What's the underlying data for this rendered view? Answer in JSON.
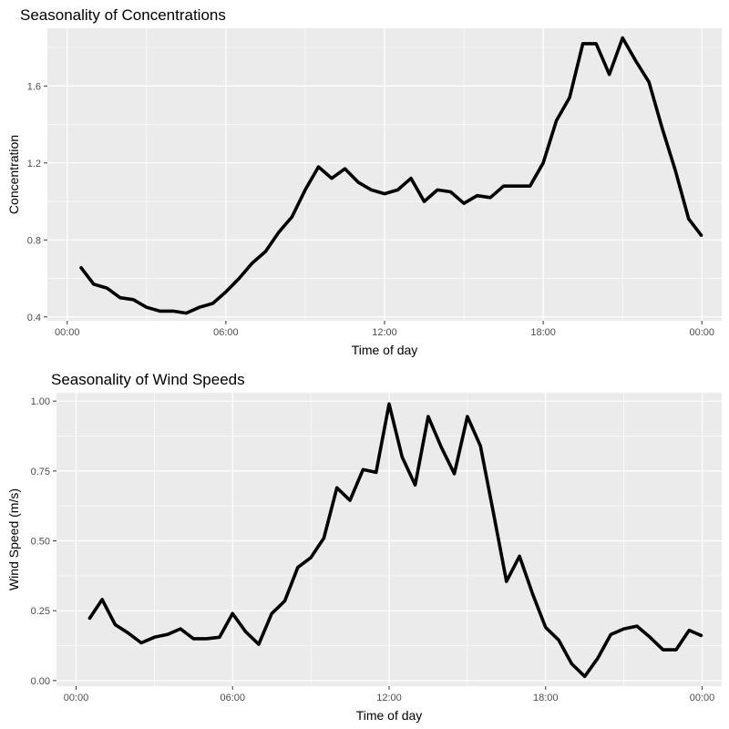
{
  "chart_data": [
    {
      "type": "line",
      "title": "Seasonality of Concentrations",
      "xlabel": "Time of day",
      "ylabel": "Concentration",
      "xlim": [
        -0.75,
        24.75
      ],
      "ylim": [
        0.38,
        1.9
      ],
      "x_ticks": [
        0,
        6,
        12,
        18,
        24
      ],
      "x_tick_labels": [
        "00:00",
        "06:00",
        "12:00",
        "18:00",
        "00:00"
      ],
      "y_ticks": [
        0.4,
        0.8,
        1.2,
        1.6
      ],
      "y_tick_labels": [
        "0.4",
        "0.8",
        "1.2",
        "1.6"
      ],
      "grid": true,
      "series": [
        {
          "x": [
            0.5,
            1,
            1.5,
            2,
            2.5,
            3,
            3.5,
            4,
            4.5,
            5,
            5.5,
            6,
            6.5,
            7,
            7.5,
            8,
            8.5,
            9,
            9.5,
            10,
            10.5,
            11,
            11.5,
            12,
            12.5,
            13,
            13.5,
            14,
            14.5,
            15,
            15.5,
            16,
            16.5,
            17,
            17.5,
            18,
            18.5,
            19,
            19.5,
            20,
            20.5,
            21,
            21.5,
            22,
            22.5,
            23,
            23.5,
            24
          ],
          "y": [
            0.66,
            0.57,
            0.55,
            0.5,
            0.49,
            0.45,
            0.43,
            0.43,
            0.42,
            0.45,
            0.47,
            0.53,
            0.6,
            0.68,
            0.74,
            0.84,
            0.92,
            1.06,
            1.18,
            1.12,
            1.17,
            1.1,
            1.06,
            1.04,
            1.06,
            1.12,
            1.0,
            1.06,
            1.05,
            0.99,
            1.03,
            1.02,
            1.08,
            1.08,
            1.08,
            1.2,
            1.42,
            1.54,
            1.82,
            1.82,
            1.66,
            1.85,
            1.73,
            1.62,
            1.38,
            1.16,
            0.91,
            0.82
          ],
          "color": "#000000"
        }
      ]
    },
    {
      "type": "line",
      "title": "Seasonality of Wind Speeds",
      "xlabel": "Time of day",
      "ylabel": "Wind Speed (m/s)",
      "xlim": [
        -0.75,
        24.75
      ],
      "ylim": [
        -0.02,
        1.03
      ],
      "x_ticks": [
        0,
        6,
        12,
        18,
        24
      ],
      "x_tick_labels": [
        "00:00",
        "06:00",
        "12:00",
        "18:00",
        "00:00"
      ],
      "y_ticks": [
        0,
        0.25,
        0.5,
        0.75,
        1.0
      ],
      "y_tick_labels": [
        "0.00",
        "0.25",
        "0.50",
        "0.75",
        "1.00"
      ],
      "grid": true,
      "series": [
        {
          "x": [
            0.5,
            1,
            1.5,
            2,
            2.5,
            3,
            3.5,
            4,
            4.5,
            5,
            5.5,
            6,
            6.5,
            7,
            7.5,
            8,
            8.5,
            9,
            9.5,
            10,
            10.5,
            11,
            11.5,
            12,
            12.5,
            13,
            13.5,
            14,
            14.5,
            15,
            15.5,
            16,
            16.5,
            17,
            17.5,
            18,
            18.5,
            19,
            19.5,
            20,
            20.5,
            21,
            21.5,
            22,
            22.5,
            23,
            23.5,
            24
          ],
          "y": [
            0.22,
            0.29,
            0.2,
            0.17,
            0.135,
            0.155,
            0.165,
            0.185,
            0.15,
            0.15,
            0.155,
            0.24,
            0.175,
            0.13,
            0.24,
            0.285,
            0.405,
            0.44,
            0.51,
            0.69,
            0.645,
            0.755,
            0.745,
            0.99,
            0.8,
            0.7,
            0.945,
            0.835,
            0.74,
            0.945,
            0.84,
            0.6,
            0.355,
            0.445,
            0.31,
            0.19,
            0.145,
            0.06,
            0.015,
            0.08,
            0.165,
            0.185,
            0.195,
            0.155,
            0.11,
            0.11,
            0.18,
            0.16
          ],
          "color": "#000000"
        }
      ]
    }
  ]
}
